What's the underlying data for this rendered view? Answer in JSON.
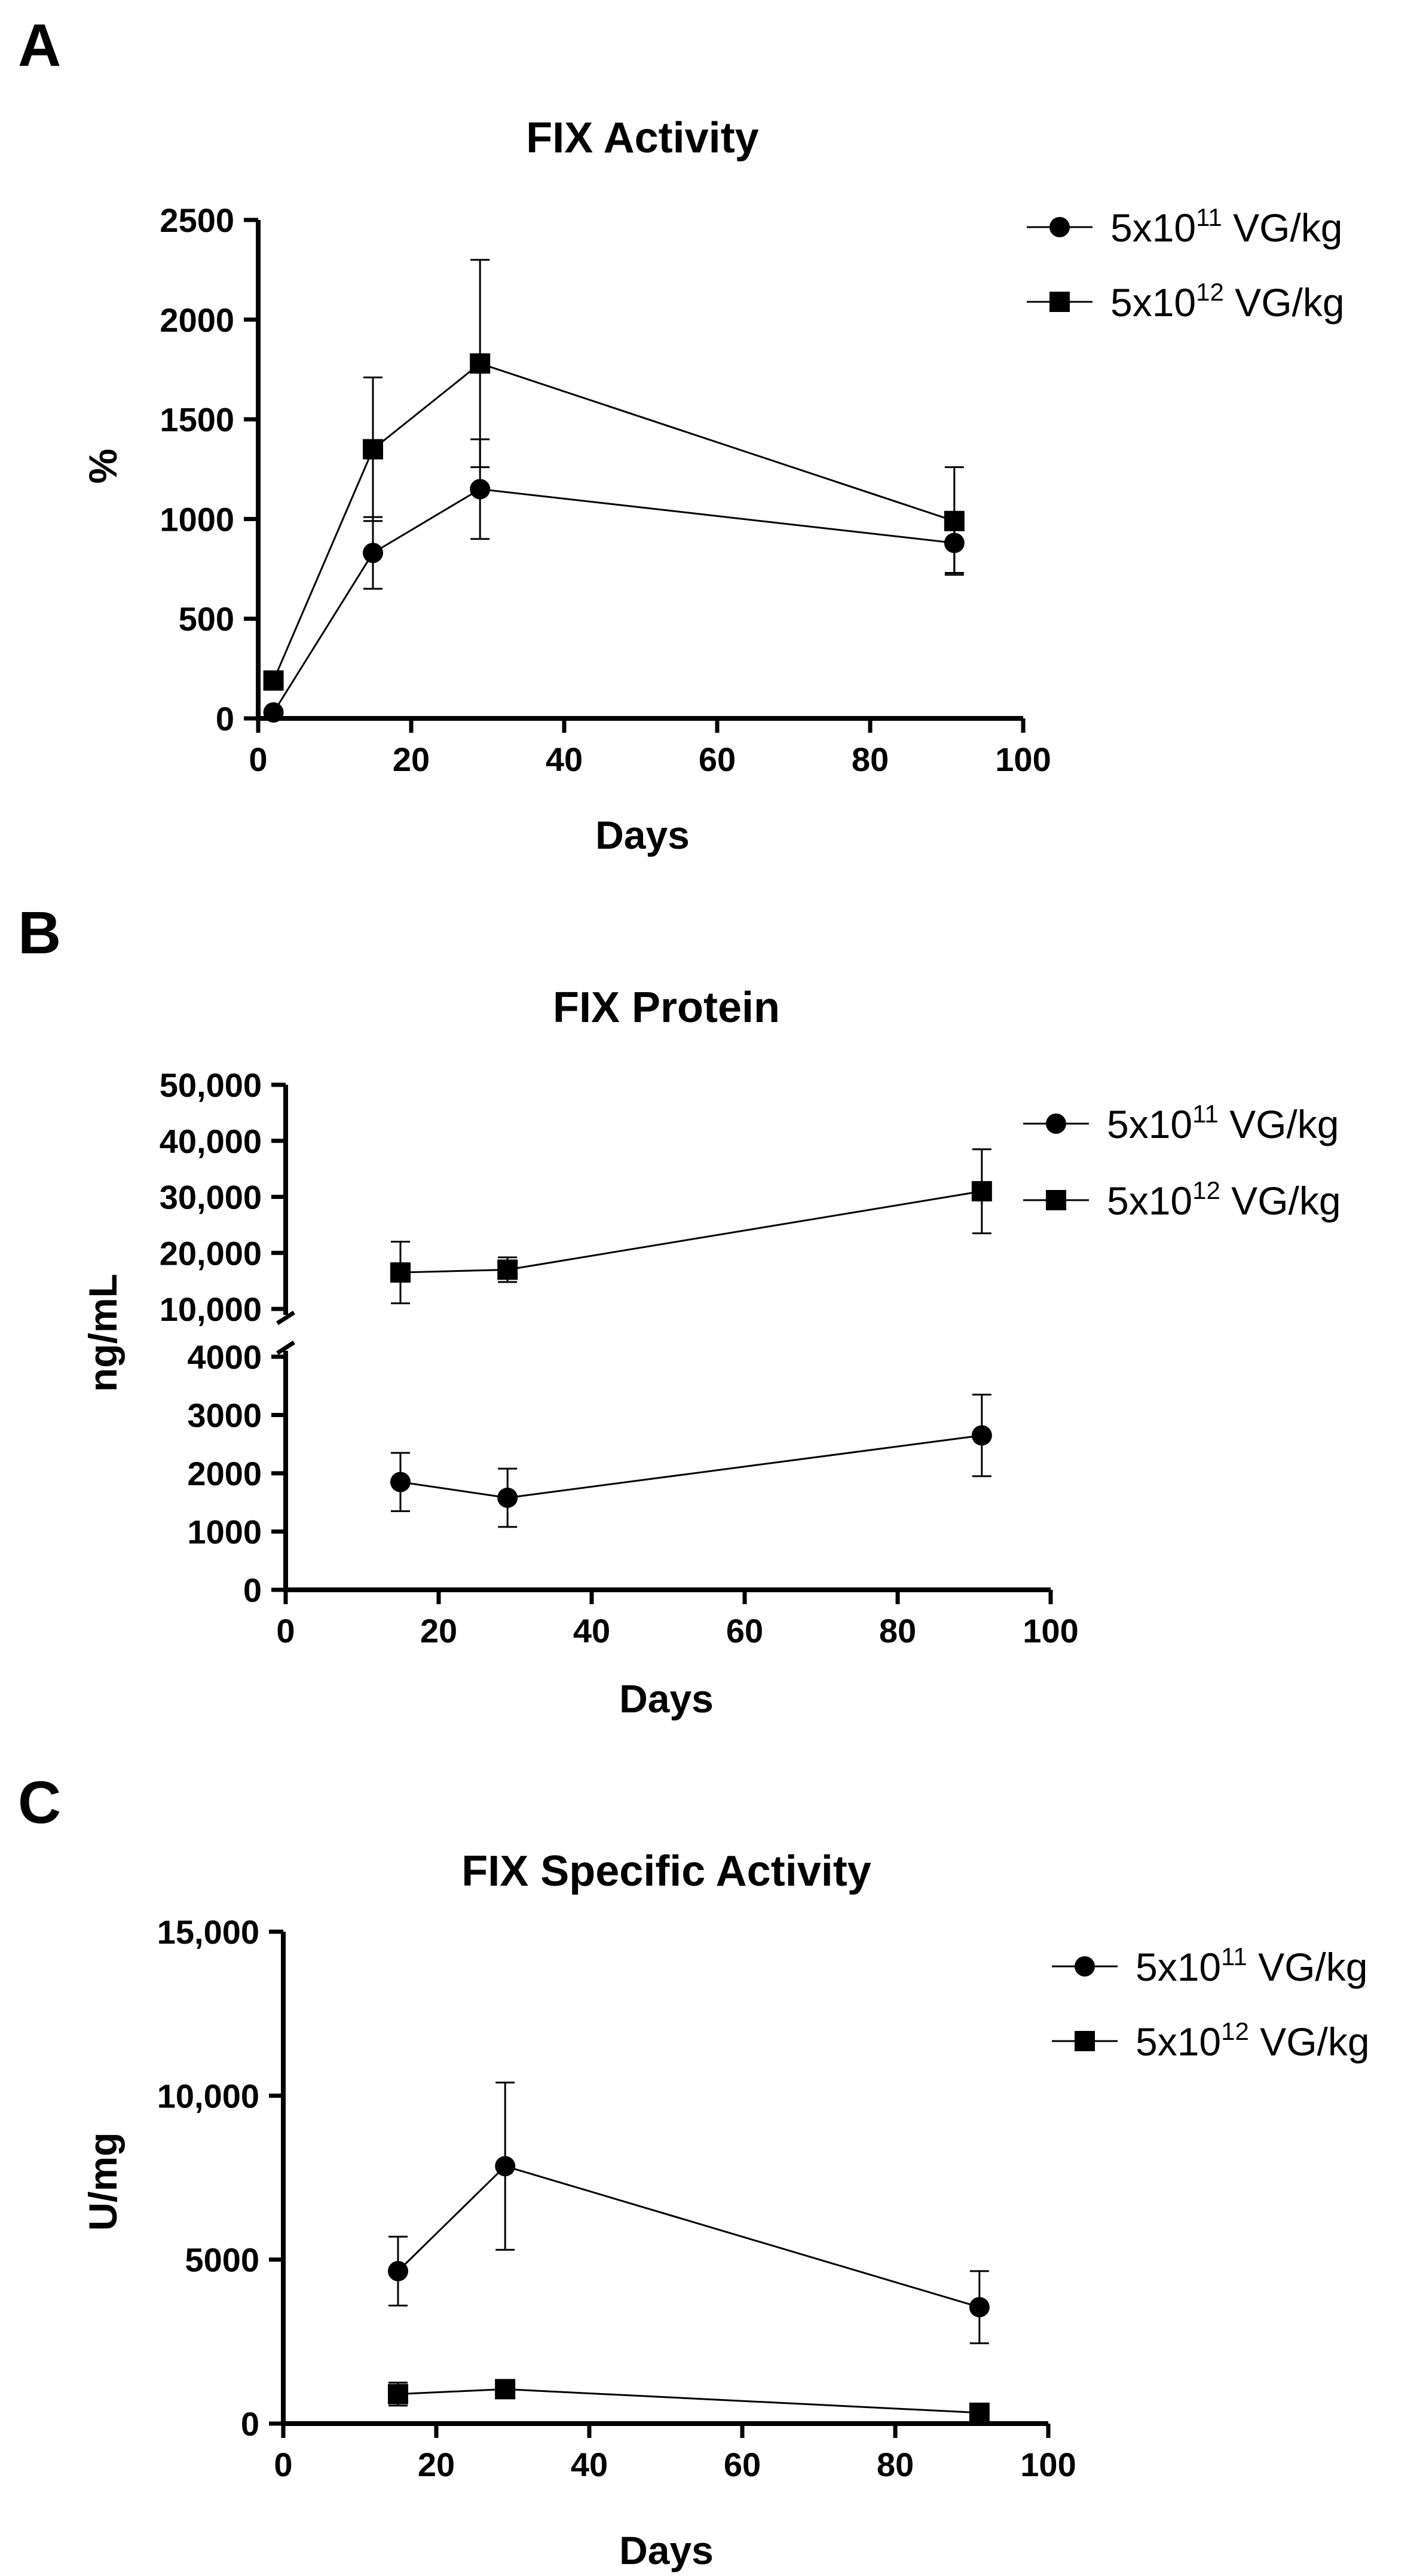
{
  "chart_data": [
    {
      "type": "line",
      "panel_label": "A",
      "title": "FIX Activity",
      "xlabel": "Days",
      "ylabel": "%",
      "xlim": [
        0,
        100
      ],
      "ylim": [
        0,
        2500
      ],
      "xticks": [
        "0",
        "20",
        "40",
        "60",
        "80",
        "100"
      ],
      "yticks": [
        "0",
        "500",
        "1000",
        "1500",
        "2000",
        "2500"
      ],
      "legend_position": "top-right",
      "series": [
        {
          "name": "5x10^11 VG/kg",
          "legend_base": "5x10",
          "legend_exp": "11",
          "legend_unit": " VG/kg",
          "marker": "circle",
          "x": [
            2,
            15,
            29,
            91
          ],
          "y": [
            30,
            830,
            1150,
            880
          ],
          "err": [
            10,
            180,
            250,
            150
          ]
        },
        {
          "name": "5x10^12 VG/kg",
          "legend_base": "5x10",
          "legend_exp": "12",
          "legend_unit": " VG/kg",
          "marker": "square",
          "x": [
            2,
            15,
            29,
            91
          ],
          "y": [
            190,
            1350,
            1780,
            990
          ],
          "err": [
            20,
            360,
            520,
            270
          ]
        }
      ]
    },
    {
      "type": "line",
      "panel_label": "B",
      "title": "FIX Protein",
      "xlabel": "Days",
      "ylabel": "ng/mL",
      "xlim": [
        0,
        100
      ],
      "ylim": [
        0,
        50000
      ],
      "axis_break": [
        4000,
        10000
      ],
      "xticks": [
        "0",
        "20",
        "40",
        "60",
        "80",
        "100"
      ],
      "yticks_lower": [
        "0",
        "1000",
        "2000",
        "3000",
        "4000"
      ],
      "yticks_upper": [
        "10,000",
        "20,000",
        "30,000",
        "40,000",
        "50,000"
      ],
      "legend_position": "top-right",
      "series": [
        {
          "name": "5x10^11 VG/kg",
          "legend_base": "5x10",
          "legend_exp": "11",
          "legend_unit": " VG/kg",
          "marker": "circle",
          "x": [
            15,
            29,
            91
          ],
          "y": [
            1850,
            1580,
            2650
          ],
          "err": [
            500,
            500,
            700
          ]
        },
        {
          "name": "5x10^12 VG/kg",
          "legend_base": "5x10",
          "legend_exp": "12",
          "legend_unit": " VG/kg",
          "marker": "square",
          "x": [
            15,
            29,
            91
          ],
          "y": [
            16500,
            17000,
            31000
          ],
          "err": [
            5500,
            2200,
            7500
          ]
        }
      ]
    },
    {
      "type": "line",
      "panel_label": "C",
      "title": "FIX Specific Activity",
      "xlabel": "Days",
      "ylabel": "U/mg",
      "xlim": [
        0,
        100
      ],
      "ylim": [
        0,
        15000
      ],
      "xticks": [
        "0",
        "20",
        "40",
        "60",
        "80",
        "100"
      ],
      "yticks": [
        "0",
        "5000",
        "10,000",
        "15,000"
      ],
      "legend_position": "top-right",
      "series": [
        {
          "name": "5x10^11 VG/kg",
          "legend_base": "5x10",
          "legend_exp": "11",
          "legend_unit": " VG/kg",
          "marker": "circle",
          "x": [
            15,
            29,
            91
          ],
          "y": [
            4650,
            7850,
            3550
          ],
          "err": [
            1050,
            2550,
            1100
          ]
        },
        {
          "name": "5x10^12 VG/kg",
          "legend_base": "5x10",
          "legend_exp": "12",
          "legend_unit": " VG/kg",
          "marker": "square",
          "x": [
            15,
            29,
            91
          ],
          "y": [
            900,
            1050,
            330
          ],
          "err": [
            350,
            150,
            80
          ]
        }
      ]
    }
  ]
}
